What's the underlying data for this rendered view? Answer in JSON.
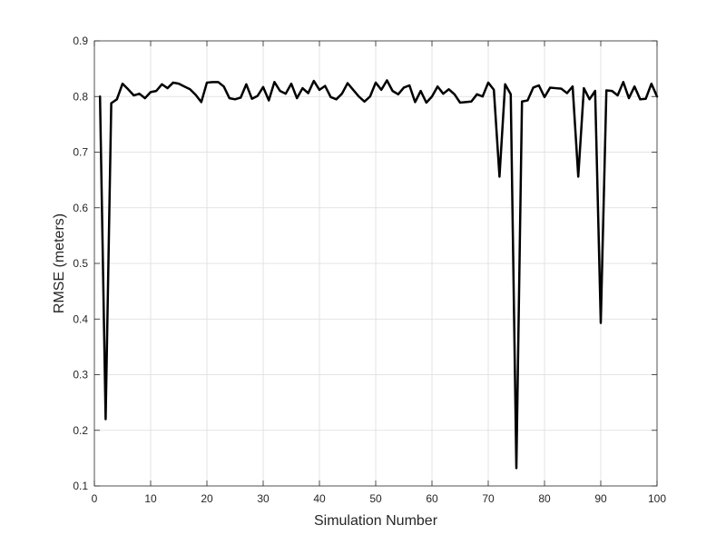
{
  "chart_data": {
    "type": "line",
    "title": "",
    "xlabel": "Simulation Number",
    "ylabel": "RMSE (meters)",
    "xlim": [
      0,
      100
    ],
    "ylim": [
      0.1,
      0.9
    ],
    "xticks": [
      0,
      10,
      20,
      30,
      40,
      50,
      60,
      70,
      80,
      90,
      100
    ],
    "yticks": [
      0.1,
      0.2,
      0.3,
      0.4,
      0.5,
      0.6,
      0.7,
      0.8,
      0.9
    ],
    "ytick_labels": [
      "0.1",
      "0.2",
      "0.3",
      "0.4",
      "0.5",
      "0.6",
      "0.7",
      "0.8",
      "0.9"
    ],
    "grid": true,
    "series": [
      {
        "color": "#000000",
        "x": [
          1,
          2,
          3,
          4,
          5,
          6,
          7,
          8,
          9,
          10,
          11,
          12,
          13,
          14,
          15,
          16,
          17,
          18,
          19,
          20,
          21,
          22,
          23,
          24,
          25,
          26,
          27,
          28,
          29,
          30,
          31,
          32,
          33,
          34,
          35,
          36,
          37,
          38,
          39,
          40,
          41,
          42,
          43,
          44,
          45,
          46,
          47,
          48,
          49,
          50,
          51,
          52,
          53,
          54,
          55,
          56,
          57,
          58,
          59,
          60,
          61,
          62,
          63,
          64,
          65,
          66,
          67,
          68,
          69,
          70,
          71,
          72,
          73,
          74,
          75,
          76,
          77,
          78,
          79,
          80,
          81,
          82,
          83,
          84,
          85,
          86,
          87,
          88,
          89,
          90,
          91,
          92,
          93,
          94,
          95,
          96,
          97,
          98,
          99,
          100
        ],
        "y": [
          0.8,
          0.22,
          0.788,
          0.795,
          0.823,
          0.813,
          0.802,
          0.805,
          0.797,
          0.808,
          0.81,
          0.822,
          0.815,
          0.825,
          0.823,
          0.818,
          0.813,
          0.803,
          0.79,
          0.825,
          0.826,
          0.826,
          0.818,
          0.797,
          0.795,
          0.798,
          0.822,
          0.796,
          0.801,
          0.817,
          0.793,
          0.826,
          0.81,
          0.805,
          0.823,
          0.797,
          0.815,
          0.806,
          0.828,
          0.812,
          0.819,
          0.799,
          0.795,
          0.805,
          0.824,
          0.812,
          0.8,
          0.791,
          0.8,
          0.825,
          0.812,
          0.829,
          0.81,
          0.804,
          0.816,
          0.82,
          0.79,
          0.81,
          0.789,
          0.8,
          0.818,
          0.805,
          0.813,
          0.804,
          0.789,
          0.79,
          0.791,
          0.804,
          0.8,
          0.825,
          0.812,
          0.656,
          0.822,
          0.804,
          0.132,
          0.791,
          0.793,
          0.816,
          0.82,
          0.799,
          0.816,
          0.815,
          0.814,
          0.806,
          0.818,
          0.656,
          0.815,
          0.795,
          0.81,
          0.393,
          0.811,
          0.81,
          0.802,
          0.826,
          0.797,
          0.818,
          0.795,
          0.796,
          0.823,
          0.8
        ]
      }
    ]
  }
}
